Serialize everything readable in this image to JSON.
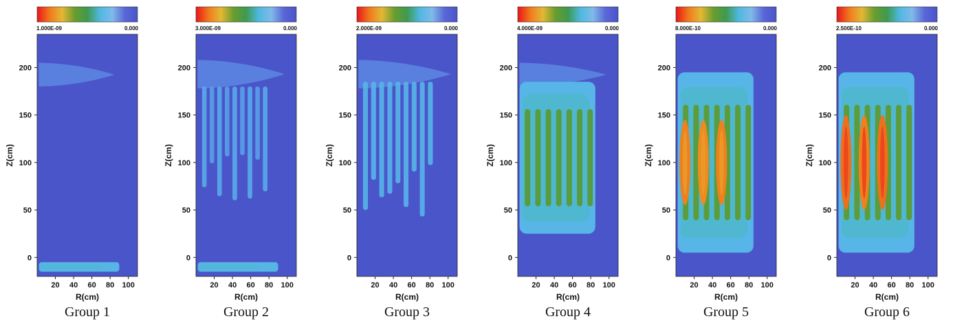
{
  "colors": {
    "background": "#4a55c9",
    "scale_stops": [
      "#e8161c",
      "#f07a1c",
      "#e4b834",
      "#6a9c2e",
      "#3e9a50",
      "#4fb8e0",
      "#7fbbe8",
      "#5a66d8",
      "#4a55c9"
    ]
  },
  "chart_data": [
    {
      "type": "heatmap",
      "title": "Group 1",
      "xlabel": "R(cm)",
      "ylabel": "Z(cm)",
      "xlim": [
        0,
        110
      ],
      "ylim": [
        -20,
        235
      ],
      "xticks": [
        "20",
        "40",
        "60",
        "80",
        "100"
      ],
      "yticks": [
        "0",
        "50",
        "100",
        "150",
        "200"
      ],
      "colorbar": {
        "max_label": "1.000E-09",
        "min_label": "0.000",
        "max": 1e-09,
        "min": 0
      },
      "features": [
        {
          "kind": "plume",
          "r": [
            5,
            70
          ],
          "z": [
            180,
            205
          ],
          "intensity": 1.0
        },
        {
          "kind": "band",
          "r": [
            5,
            90
          ],
          "z": [
            -15,
            -5
          ],
          "intensity": 0.25
        }
      ]
    },
    {
      "type": "heatmap",
      "title": "Group 2",
      "xlabel": "R(cm)",
      "ylabel": "Z(cm)",
      "xlim": [
        0,
        110
      ],
      "ylim": [
        -20,
        235
      ],
      "xticks": [
        "20",
        "40",
        "60",
        "80",
        "100"
      ],
      "yticks": [
        "0",
        "50",
        "100",
        "150",
        "200"
      ],
      "colorbar": {
        "max_label": "3.000E-09",
        "min_label": "0.000",
        "max": 3e-09,
        "min": 0
      },
      "features": [
        {
          "kind": "plume",
          "r": [
            5,
            80
          ],
          "z": [
            178,
            208
          ],
          "intensity": 1.0
        },
        {
          "kind": "streaks",
          "r": [
            5,
            80
          ],
          "z": [
            60,
            180
          ],
          "intensity": 0.2
        },
        {
          "kind": "band",
          "r": [
            5,
            90
          ],
          "z": [
            -15,
            -5
          ],
          "intensity": 0.3
        }
      ]
    },
    {
      "type": "heatmap",
      "title": "Group 3",
      "xlabel": "R(cm)",
      "ylabel": "Z(cm)",
      "xlim": [
        0,
        110
      ],
      "ylim": [
        -20,
        235
      ],
      "xticks": [
        "20",
        "40",
        "60",
        "80",
        "100"
      ],
      "yticks": [
        "0",
        "50",
        "100",
        "150",
        "200"
      ],
      "colorbar": {
        "max_label": "2.000E-09",
        "min_label": "0.000",
        "max": 2e-09,
        "min": 0
      },
      "features": [
        {
          "kind": "plume",
          "r": [
            5,
            85
          ],
          "z": [
            178,
            208
          ],
          "intensity": 1.0
        },
        {
          "kind": "streaks",
          "r": [
            5,
            85
          ],
          "z": [
            40,
            185
          ],
          "intensity": 0.35
        }
      ]
    },
    {
      "type": "heatmap",
      "title": "Group 4",
      "xlabel": "R(cm)",
      "ylabel": "Z(cm)",
      "xlim": [
        0,
        110
      ],
      "ylim": [
        -20,
        235
      ],
      "xticks": [
        "20",
        "40",
        "60",
        "80",
        "100"
      ],
      "yticks": [
        "0",
        "50",
        "100",
        "150",
        "200"
      ],
      "colorbar": {
        "max_label": "4.000E-09",
        "min_label": "0.000",
        "max": 4e-09,
        "min": 0
      },
      "features": [
        {
          "kind": "plume",
          "r": [
            5,
            80
          ],
          "z": [
            180,
            205
          ],
          "intensity": 1.0
        },
        {
          "kind": "column",
          "r": [
            5,
            85
          ],
          "z": [
            25,
            185
          ],
          "intensity": 0.5
        }
      ]
    },
    {
      "type": "heatmap",
      "title": "Group 5",
      "xlabel": "R(cm)",
      "ylabel": "Z(cm)",
      "xlim": [
        0,
        110
      ],
      "ylim": [
        -20,
        235
      ],
      "xticks": [
        "20",
        "40",
        "60",
        "80",
        "100"
      ],
      "yticks": [
        "0",
        "50",
        "100",
        "150",
        "200"
      ],
      "colorbar": {
        "max_label": "8.000E-10",
        "min_label": "0.000",
        "max": 8e-10,
        "min": 0
      },
      "features": [
        {
          "kind": "column",
          "r": [
            5,
            85
          ],
          "z": [
            5,
            195
          ],
          "intensity": 0.6
        },
        {
          "kind": "hotspots",
          "r": [
            5,
            55
          ],
          "z": [
            55,
            145
          ],
          "intensity": 0.85
        }
      ]
    },
    {
      "type": "heatmap",
      "title": "Group 6",
      "xlabel": "R(cm)",
      "ylabel": "Z(cm)",
      "xlim": [
        0,
        110
      ],
      "ylim": [
        -20,
        235
      ],
      "xticks": [
        "20",
        "40",
        "60",
        "80",
        "100"
      ],
      "yticks": [
        "0",
        "50",
        "100",
        "150",
        "200"
      ],
      "colorbar": {
        "max_label": "2.500E-10",
        "min_label": "0.000",
        "max": 2.5e-10,
        "min": 0
      },
      "features": [
        {
          "kind": "column",
          "r": [
            5,
            85
          ],
          "z": [
            5,
            195
          ],
          "intensity": 0.6
        },
        {
          "kind": "hotspots",
          "r": [
            5,
            55
          ],
          "z": [
            50,
            150
          ],
          "intensity": 0.95
        }
      ]
    }
  ]
}
